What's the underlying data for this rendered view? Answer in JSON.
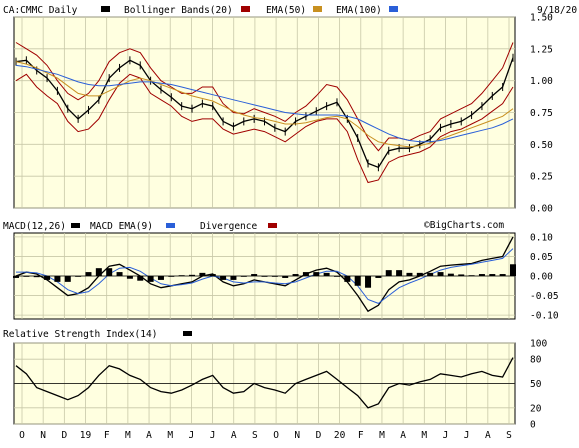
{
  "header": {
    "symbol_label": "CA:CMMC Daily",
    "bb_label": "Bollinger Bands(20)",
    "ema50_label": "EMA(50)",
    "ema100_label": "EMA(100)",
    "date": "9/18/20"
  },
  "macd_header": {
    "macd_label": "MACD(12,26)",
    "macd_ema_label": "MACD EMA(9)",
    "divergence_label": "Divergence",
    "watermark": "©BigCharts.com"
  },
  "rsi_header": {
    "rsi_label": "Relative Strength Index(14)"
  },
  "colors": {
    "price": "#000000",
    "bollinger": "#a00000",
    "ema50": "#a00000",
    "ema100": "#c89020",
    "ema100_swatch": "#c89020",
    "blue": "#2a5fd8",
    "background": "#ffffe0",
    "grid": "#c8c8a8"
  },
  "chart_data": [
    {
      "type": "line",
      "title": "CA:CMMC Daily",
      "ylim": [
        0.0,
        1.5
      ],
      "y_ticks": [
        "1.50",
        "1.25",
        "1.00",
        "0.75",
        "0.50",
        "0.25",
        "0.00"
      ],
      "y_tick_values": [
        1.5,
        1.25,
        1.0,
        0.75,
        0.5,
        0.25,
        0.0
      ],
      "x_months": [
        "O",
        "N",
        "D",
        "19",
        "F",
        "M",
        "A",
        "M",
        "J",
        "J",
        "A",
        "S",
        "O",
        "N",
        "D",
        "20",
        "F",
        "M",
        "A",
        "M",
        "J",
        "J",
        "A",
        "S"
      ],
      "x": [
        0,
        1,
        2,
        3,
        4,
        5,
        6,
        7,
        8,
        9,
        10,
        11,
        12,
        13,
        14,
        15,
        16,
        17,
        18,
        19,
        20,
        21,
        22,
        23,
        24,
        25,
        26,
        27,
        28,
        29,
        30,
        31,
        32,
        33,
        34,
        35,
        36,
        37,
        38,
        39,
        40,
        41,
        42,
        43,
        44,
        45,
        46,
        47,
        48
      ],
      "series": [
        {
          "values": [
            1.15,
            1.16,
            1.08,
            1.02,
            0.92,
            0.78,
            0.7,
            0.77,
            0.85,
            1.02,
            1.1,
            1.16,
            1.12,
            1.0,
            0.93,
            0.87,
            0.8,
            0.78,
            0.82,
            0.8,
            0.68,
            0.64,
            0.68,
            0.7,
            0.68,
            0.63,
            0.6,
            0.68,
            0.72,
            0.76,
            0.8,
            0.83,
            0.7,
            0.55,
            0.35,
            0.32,
            0.45,
            0.47,
            0.47,
            0.5,
            0.54,
            0.63,
            0.66,
            0.68,
            0.73,
            0.8,
            0.88,
            0.95,
            1.18
          ]
        },
        {
          "values": [
            1.3,
            1.25,
            1.2,
            1.12,
            1.0,
            0.9,
            0.85,
            0.9,
            1.0,
            1.15,
            1.22,
            1.25,
            1.22,
            1.1,
            1.0,
            0.95,
            0.9,
            0.9,
            0.95,
            0.95,
            0.82,
            0.75,
            0.74,
            0.78,
            0.75,
            0.72,
            0.68,
            0.75,
            0.8,
            0.88,
            0.97,
            0.95,
            0.85,
            0.7,
            0.55,
            0.45,
            0.55,
            0.55,
            0.53,
            0.57,
            0.6,
            0.7,
            0.74,
            0.78,
            0.82,
            0.9,
            1.0,
            1.1,
            1.3
          ]
        },
        {
          "values": [
            1.0,
            1.05,
            0.95,
            0.88,
            0.82,
            0.68,
            0.6,
            0.62,
            0.7,
            0.85,
            0.98,
            1.05,
            1.02,
            0.9,
            0.85,
            0.8,
            0.72,
            0.68,
            0.7,
            0.7,
            0.62,
            0.58,
            0.6,
            0.62,
            0.6,
            0.56,
            0.52,
            0.58,
            0.64,
            0.68,
            0.7,
            0.7,
            0.6,
            0.38,
            0.2,
            0.22,
            0.36,
            0.4,
            0.42,
            0.44,
            0.48,
            0.56,
            0.6,
            0.62,
            0.66,
            0.7,
            0.76,
            0.82,
            0.95
          ]
        },
        {
          "values": [
            1.15,
            1.13,
            1.1,
            1.06,
            1.02,
            0.96,
            0.9,
            0.88,
            0.88,
            0.92,
            0.96,
            1.0,
            1.02,
            1.0,
            0.97,
            0.94,
            0.91,
            0.88,
            0.86,
            0.84,
            0.8,
            0.76,
            0.73,
            0.71,
            0.7,
            0.68,
            0.66,
            0.66,
            0.67,
            0.69,
            0.71,
            0.72,
            0.7,
            0.64,
            0.57,
            0.52,
            0.5,
            0.49,
            0.48,
            0.49,
            0.51,
            0.54,
            0.57,
            0.6,
            0.63,
            0.66,
            0.69,
            0.72,
            0.78
          ]
        },
        {
          "values": [
            1.12,
            1.11,
            1.09,
            1.07,
            1.05,
            1.02,
            0.99,
            0.97,
            0.96,
            0.96,
            0.97,
            0.98,
            0.99,
            0.99,
            0.98,
            0.97,
            0.95,
            0.93,
            0.91,
            0.89,
            0.87,
            0.85,
            0.83,
            0.81,
            0.79,
            0.77,
            0.75,
            0.74,
            0.73,
            0.73,
            0.73,
            0.73,
            0.72,
            0.7,
            0.66,
            0.62,
            0.58,
            0.55,
            0.53,
            0.52,
            0.52,
            0.53,
            0.55,
            0.57,
            0.59,
            0.61,
            0.63,
            0.66,
            0.7
          ]
        }
      ]
    },
    {
      "type": "line",
      "title": "MACD(12,26)",
      "ylim": [
        -0.11,
        0.11
      ],
      "y_ticks": [
        "0.10",
        "0.05",
        "0.00",
        "-0.05",
        "-0.10"
      ],
      "y_tick_values": [
        0.1,
        0.05,
        0.0,
        -0.05,
        -0.1
      ],
      "x": [
        0,
        1,
        2,
        3,
        4,
        5,
        6,
        7,
        8,
        9,
        10,
        11,
        12,
        13,
        14,
        15,
        16,
        17,
        18,
        19,
        20,
        21,
        22,
        23,
        24,
        25,
        26,
        27,
        28,
        29,
        30,
        31,
        32,
        33,
        34,
        35,
        36,
        37,
        38,
        39,
        40,
        41,
        42,
        43,
        44,
        45,
        46,
        47,
        48
      ],
      "series": [
        {
          "values": [
            0.0,
            0.01,
            0.005,
            -0.01,
            -0.03,
            -0.05,
            -0.045,
            -0.03,
            0.0,
            0.025,
            0.03,
            0.015,
            0.0,
            -0.02,
            -0.03,
            -0.025,
            -0.02,
            -0.015,
            0.0,
            0.005,
            -0.015,
            -0.025,
            -0.02,
            -0.01,
            -0.015,
            -0.02,
            -0.025,
            -0.01,
            0.005,
            0.015,
            0.02,
            0.01,
            -0.015,
            -0.05,
            -0.09,
            -0.075,
            -0.035,
            -0.015,
            -0.01,
            0.0,
            0.012,
            0.025,
            0.028,
            0.03,
            0.032,
            0.04,
            0.045,
            0.05,
            0.1
          ]
        },
        {
          "values": [
            0.01,
            0.01,
            0.008,
            0.0,
            -0.015,
            -0.035,
            -0.045,
            -0.04,
            -0.02,
            0.005,
            0.02,
            0.022,
            0.012,
            -0.005,
            -0.02,
            -0.025,
            -0.022,
            -0.018,
            -0.008,
            0.0,
            -0.005,
            -0.015,
            -0.018,
            -0.015,
            -0.015,
            -0.018,
            -0.02,
            -0.015,
            -0.005,
            0.005,
            0.012,
            0.012,
            0.0,
            -0.025,
            -0.06,
            -0.07,
            -0.05,
            -0.03,
            -0.018,
            -0.008,
            0.004,
            0.015,
            0.022,
            0.026,
            0.03,
            0.035,
            0.04,
            0.045,
            0.07
          ]
        },
        {
          "values": [
            -0.005,
            0.0,
            -0.003,
            -0.01,
            -0.015,
            -0.015,
            0.0,
            0.01,
            0.02,
            0.02,
            0.01,
            -0.007,
            -0.012,
            -0.015,
            -0.01,
            0.0,
            0.002,
            0.003,
            0.008,
            0.005,
            -0.01,
            -0.01,
            -0.002,
            0.005,
            0.0,
            -0.002,
            -0.005,
            0.005,
            0.01,
            0.01,
            0.008,
            -0.002,
            -0.015,
            -0.025,
            -0.03,
            -0.005,
            0.015,
            0.015,
            0.008,
            0.008,
            0.008,
            0.01,
            0.006,
            0.004,
            0.002,
            0.005,
            0.005,
            0.005,
            0.03
          ]
        }
      ]
    },
    {
      "type": "line",
      "title": "Relative Strength Index(14)",
      "ylim": [
        0,
        100
      ],
      "y_ticks": [
        "100",
        "80",
        "50",
        "20",
        "0"
      ],
      "y_tick_values": [
        100,
        80,
        50,
        20,
        0
      ],
      "x": [
        0,
        1,
        2,
        3,
        4,
        5,
        6,
        7,
        8,
        9,
        10,
        11,
        12,
        13,
        14,
        15,
        16,
        17,
        18,
        19,
        20,
        21,
        22,
        23,
        24,
        25,
        26,
        27,
        28,
        29,
        30,
        31,
        32,
        33,
        34,
        35,
        36,
        37,
        38,
        39,
        40,
        41,
        42,
        43,
        44,
        45,
        46,
        47,
        48
      ],
      "series": [
        {
          "values": [
            72,
            62,
            45,
            40,
            35,
            30,
            35,
            45,
            60,
            72,
            68,
            60,
            55,
            45,
            40,
            38,
            42,
            48,
            55,
            60,
            45,
            38,
            40,
            50,
            45,
            42,
            38,
            50,
            55,
            60,
            65,
            55,
            45,
            35,
            20,
            25,
            45,
            50,
            48,
            52,
            55,
            62,
            60,
            58,
            62,
            65,
            60,
            58,
            82
          ]
        }
      ]
    }
  ]
}
